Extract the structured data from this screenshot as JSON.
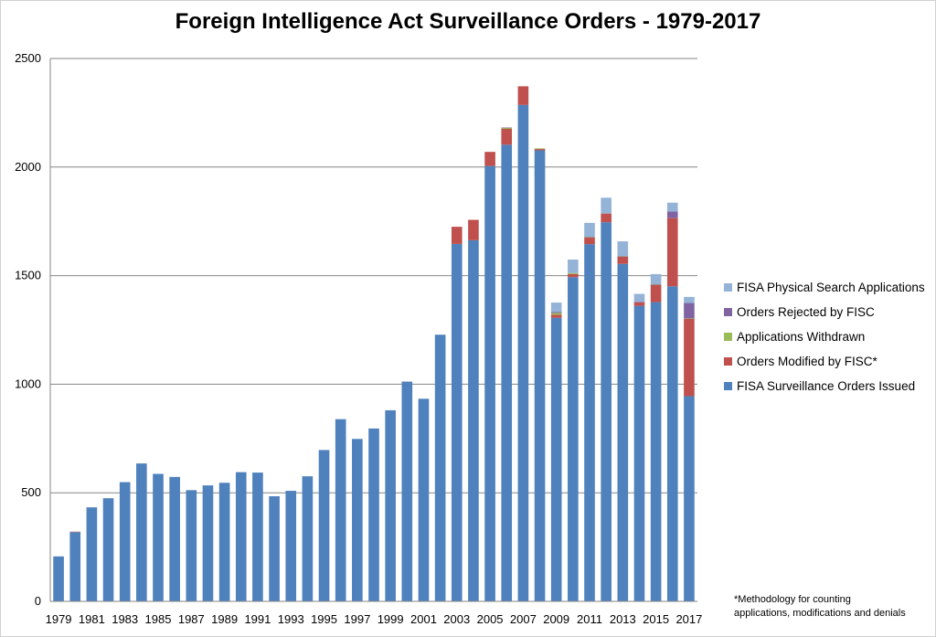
{
  "chart_data": {
    "type": "bar",
    "stacked": true,
    "title": "Foreign Intelligence Act Surveillance Orders - 1979-2017",
    "xlabel": "",
    "ylabel": "",
    "ylim": [
      0,
      2500
    ],
    "yticks": [
      0,
      500,
      1000,
      1500,
      2000,
      2500
    ],
    "grid": "horizontal",
    "legend_position": "right",
    "categories": [
      "1979",
      "1980",
      "1981",
      "1982",
      "1983",
      "1984",
      "1985",
      "1986",
      "1987",
      "1988",
      "1989",
      "1990",
      "1991",
      "1992",
      "1993",
      "1994",
      "1995",
      "1996",
      "1997",
      "1998",
      "1999",
      "2000",
      "2001",
      "2002",
      "2003",
      "2004",
      "2005",
      "2006",
      "2007",
      "2008",
      "2009",
      "2010",
      "2011",
      "2012",
      "2013",
      "2014",
      "2015",
      "2016",
      "2017"
    ],
    "x_tick_labels": [
      "1979",
      "1981",
      "1983",
      "1985",
      "1987",
      "1989",
      "1991",
      "1993",
      "1995",
      "1997",
      "1999",
      "2001",
      "2003",
      "2005",
      "2007",
      "2009",
      "2011",
      "2013",
      "2015",
      "2017"
    ],
    "series": [
      {
        "name": "FISA Surveillance Orders Issued",
        "color": "#4f81bd",
        "values": [
          207,
          319,
          433,
          475,
          549,
          635,
          587,
          573,
          512,
          534,
          546,
          595,
          593,
          484,
          509,
          576,
          697,
          839,
          748,
          796,
          880,
          1012,
          933,
          1228,
          1646,
          1663,
          2005,
          2103,
          2286,
          2077,
          1306,
          1493,
          1645,
          1746,
          1554,
          1361,
          1378,
          1451,
          945
        ]
      },
      {
        "name": "Orders Modified by FISC*",
        "color": "#c0504d",
        "values": [
          0,
          2,
          0,
          0,
          0,
          0,
          0,
          0,
          0,
          0,
          0,
          0,
          0,
          0,
          0,
          0,
          0,
          0,
          0,
          0,
          0,
          0,
          0,
          0,
          79,
          94,
          65,
          73,
          86,
          6,
          14,
          14,
          30,
          40,
          34,
          17,
          80,
          314,
          357
        ]
      },
      {
        "name": "Applications Withdrawn",
        "color": "#9bbb59",
        "values": [
          0,
          0,
          0,
          0,
          0,
          0,
          0,
          0,
          0,
          0,
          0,
          0,
          0,
          0,
          0,
          0,
          0,
          0,
          0,
          0,
          0,
          0,
          0,
          0,
          0,
          0,
          0,
          5,
          0,
          3,
          8,
          5,
          2,
          0,
          1,
          0,
          1,
          0,
          1
        ]
      },
      {
        "name": "Orders Rejected by FISC",
        "color": "#8064a2",
        "values": [
          0,
          0,
          0,
          0,
          0,
          0,
          0,
          0,
          0,
          0,
          0,
          0,
          0,
          0,
          0,
          0,
          0,
          0,
          0,
          0,
          0,
          0,
          0,
          0,
          0,
          0,
          0,
          1,
          0,
          0,
          5,
          0,
          2,
          0,
          1,
          1,
          1,
          31,
          71
        ]
      },
      {
        "name": "FISA Physical Search Applications",
        "color": "#95b3d7",
        "values": [
          0,
          0,
          0,
          0,
          0,
          0,
          0,
          0,
          0,
          0,
          0,
          0,
          0,
          0,
          0,
          0,
          0,
          0,
          0,
          0,
          0,
          0,
          0,
          0,
          0,
          0,
          0,
          0,
          0,
          0,
          43,
          62,
          64,
          73,
          68,
          37,
          47,
          40,
          28
        ]
      }
    ],
    "legend_order": [
      "FISA Physical Search Applications",
      "Orders Rejected by FISC",
      "Applications Withdrawn",
      "Orders Modified by FISC*",
      "FISA Surveillance Orders Issued"
    ]
  },
  "footnote": {
    "line1": "*Methodology for counting",
    "line2": "applications, modifications and denials"
  }
}
